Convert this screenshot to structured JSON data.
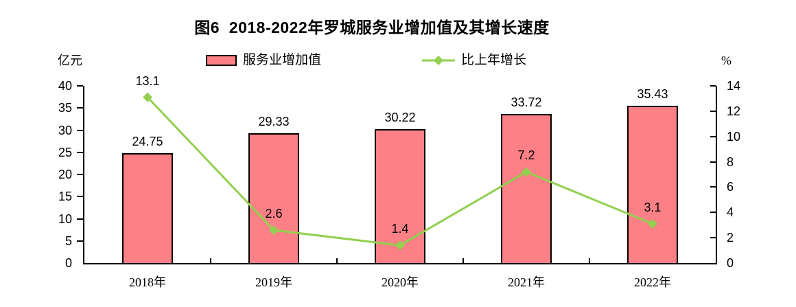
{
  "title": "图6  2018-2022年罗城服务业增加值及其增长速度",
  "axes": {
    "left_unit": "亿元",
    "right_unit": "%"
  },
  "legend": {
    "bar_label": "服务业增加值",
    "line_label": "比上年增长"
  },
  "colors": {
    "bar_fill": "#FC8085",
    "bar_border": "#000000",
    "line": "#92D050",
    "axis": "#000000",
    "text": "#000000",
    "background": "#FFFFFF"
  },
  "chart_data": {
    "type": "bar+line",
    "title": "图6  2018-2022年罗城服务业增加值及其增长速度",
    "categories": [
      "2018年",
      "2019年",
      "2020年",
      "2021年",
      "2022年"
    ],
    "series": [
      {
        "name": "服务业增加值",
        "type": "bar",
        "axis": "left",
        "unit": "亿元",
        "color": "#FC8085",
        "values": [
          24.75,
          29.33,
          30.22,
          33.72,
          35.43
        ]
      },
      {
        "name": "比上年增长",
        "type": "line",
        "axis": "right",
        "unit": "%",
        "color": "#92D050",
        "values": [
          13.1,
          2.6,
          1.4,
          7.2,
          3.1
        ]
      }
    ],
    "left_axis": {
      "label": "亿元",
      "min": 0,
      "max": 40,
      "step": 5
    },
    "right_axis": {
      "label": "%",
      "min": 0,
      "max": 14,
      "step": 2
    },
    "grid": false,
    "legend_position": "top",
    "data_labels": true
  }
}
